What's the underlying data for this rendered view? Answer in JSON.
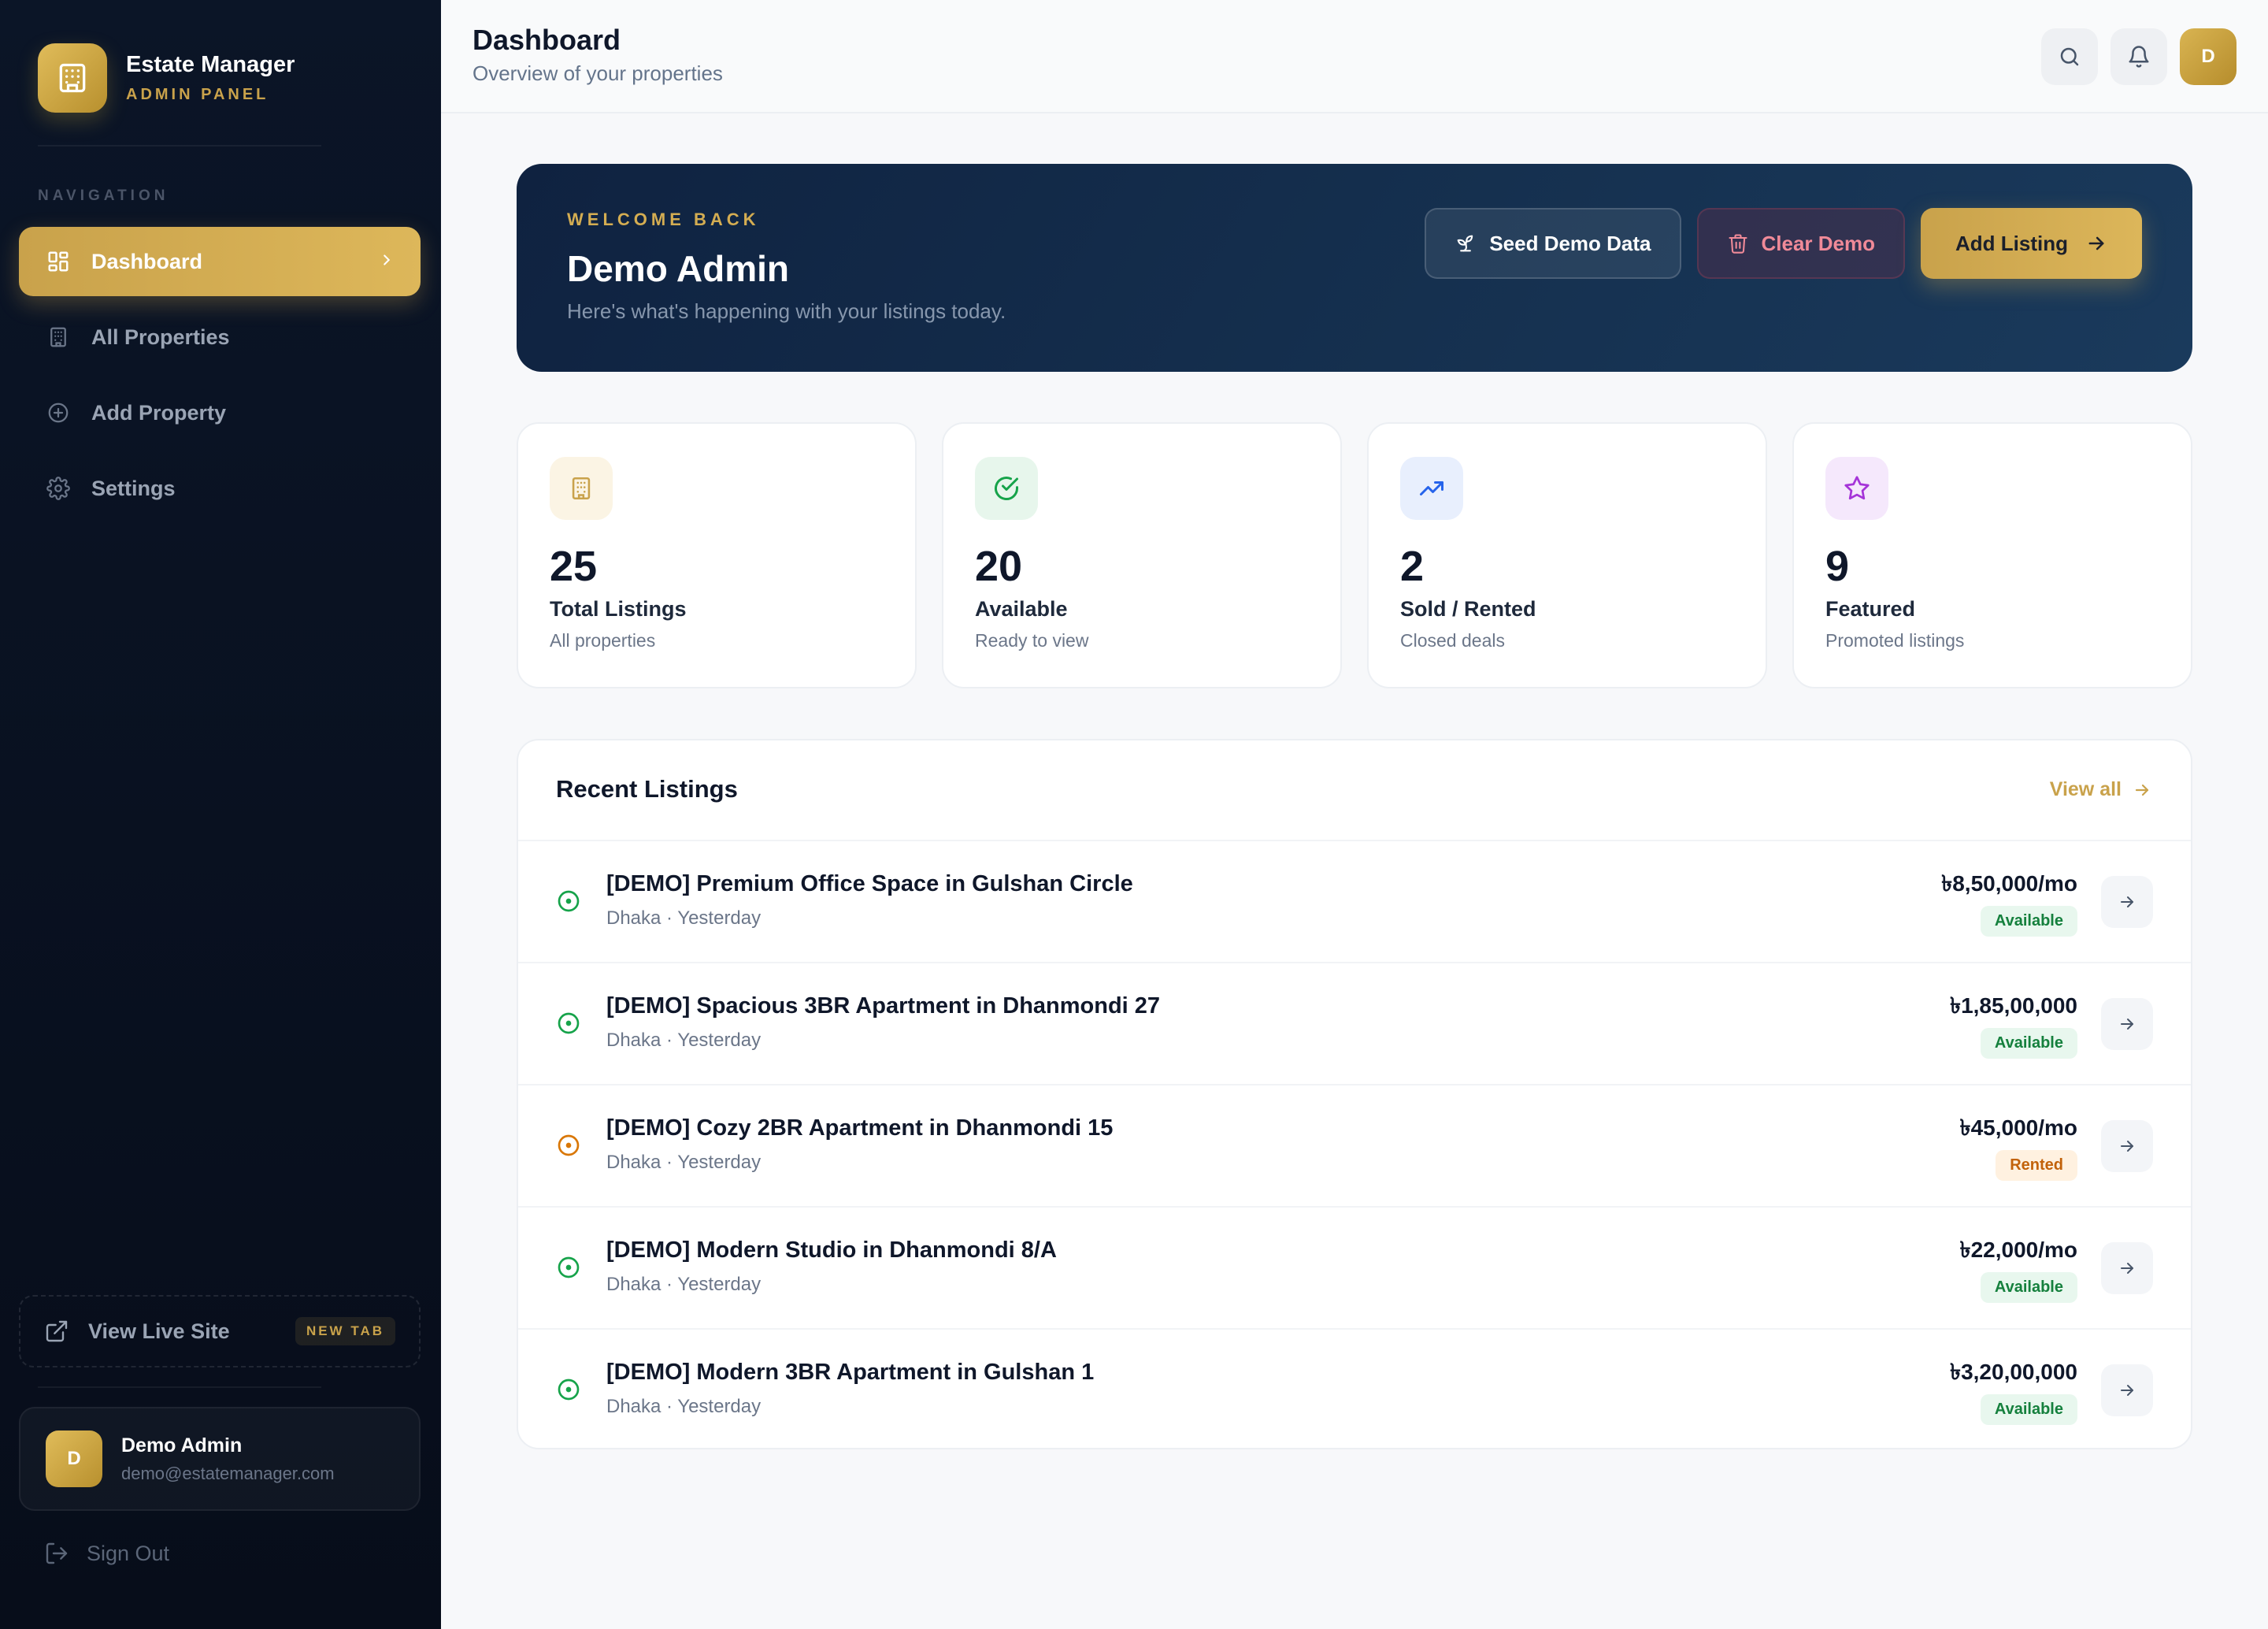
{
  "brand": {
    "title": "Estate Manager",
    "subtitle": "ADMIN PANEL"
  },
  "sidebar": {
    "heading": "NAVIGATION",
    "items": [
      {
        "label": "Dashboard",
        "icon": "dashboard-grid-icon",
        "active": true
      },
      {
        "label": "All Properties",
        "icon": "building-icon"
      },
      {
        "label": "Add Property",
        "icon": "plus-circle-icon"
      },
      {
        "label": "Settings",
        "icon": "gear-icon"
      }
    ],
    "live_site": {
      "label": "View Live Site",
      "badge": "NEW TAB"
    },
    "user": {
      "initial": "D",
      "name": "Demo Admin",
      "email": "demo@estatemanager.com"
    },
    "sign_out": "Sign Out"
  },
  "header": {
    "title": "Dashboard",
    "subtitle": "Overview of your properties",
    "avatar_initial": "D"
  },
  "welcome": {
    "eyebrow": "WELCOME BACK",
    "name": "Demo Admin",
    "subtitle": "Here's what's happening with your listings today.",
    "seed_label": "Seed Demo Data",
    "clear_label": "Clear Demo",
    "add_label": "Add Listing"
  },
  "stats": [
    {
      "value": "25",
      "label": "Total Listings",
      "sub": "All properties",
      "icon": "building-icon"
    },
    {
      "value": "20",
      "label": "Available",
      "sub": "Ready to view",
      "icon": "check-circle-icon"
    },
    {
      "value": "2",
      "label": "Sold / Rented",
      "sub": "Closed deals",
      "icon": "trending-up-icon"
    },
    {
      "value": "9",
      "label": "Featured",
      "sub": "Promoted listings",
      "icon": "star-icon"
    }
  ],
  "listings": {
    "title": "Recent Listings",
    "view_all": "View all",
    "rows": [
      {
        "title": "[DEMO] Premium Office Space in Gulshan Circle",
        "meta": "Dhaka · Yesterday",
        "price": "৳8,50,000/mo",
        "status": "Available"
      },
      {
        "title": "[DEMO] Spacious 3BR Apartment in Dhanmondi 27",
        "meta": "Dhaka · Yesterday",
        "price": "৳1,85,00,000",
        "status": "Available"
      },
      {
        "title": "[DEMO] Cozy 2BR Apartment in Dhanmondi 15",
        "meta": "Dhaka · Yesterday",
        "price": "৳45,000/mo",
        "status": "Rented"
      },
      {
        "title": "[DEMO] Modern Studio in Dhanmondi 8/A",
        "meta": "Dhaka · Yesterday",
        "price": "৳22,000/mo",
        "status": "Available"
      },
      {
        "title": "[DEMO] Modern 3BR Apartment in Gulshan 1",
        "meta": "Dhaka · Yesterday",
        "price": "৳3,20,00,000",
        "status": "Available"
      }
    ]
  },
  "colors": {
    "accent": "#c9a24b",
    "sidebar_bg": "#0b1527",
    "available": "#15803d",
    "rented": "#c2620a"
  }
}
